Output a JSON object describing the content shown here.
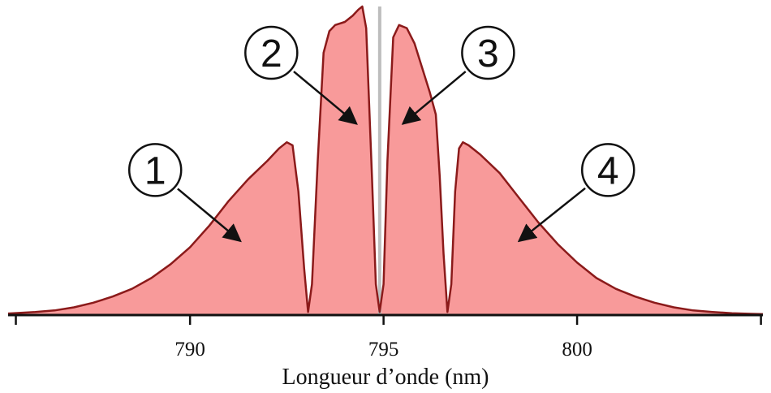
{
  "chart_data": {
    "type": "area",
    "title": "",
    "xlabel": "Longueur d’onde (nm)",
    "ylabel": "",
    "xlim": [
      785.3,
      804.8
    ],
    "ylim": [
      0,
      1.0
    ],
    "x_ticks": [
      790,
      795,
      800
    ],
    "x_tick_labels": [
      "790",
      "795",
      "800"
    ],
    "grid": false,
    "legend": "none",
    "colors": {
      "fill": "#f89a9a",
      "line": "#8b1a1a",
      "axis": "#111111",
      "center_marker": "#bdbdbd"
    },
    "center_marker_x": 794.9,
    "series": [
      {
        "x": [
          785.3,
          786.0,
          786.5,
          787.0,
          787.5,
          788.0,
          788.5,
          789.0,
          789.5,
          790.0,
          790.5,
          791.0,
          791.5,
          792.0,
          792.3,
          792.5,
          792.65,
          792.8,
          792.95,
          793.05,
          793.15,
          793.3,
          793.45,
          793.6,
          793.75,
          794.0,
          794.2,
          794.35,
          794.45,
          794.55,
          794.7,
          794.8,
          794.9,
          795.0,
          795.1,
          795.25,
          795.4,
          795.6,
          795.8,
          796.0,
          796.2,
          796.35,
          796.45,
          796.55,
          796.65,
          796.75,
          796.85,
          796.95,
          797.05,
          797.2,
          797.5,
          798.0,
          798.5,
          799.0,
          799.5,
          800.0,
          800.5,
          801.0,
          801.5,
          802.0,
          802.5,
          803.0,
          803.5,
          804.0,
          804.5,
          804.8
        ],
        "y": [
          0.005,
          0.01,
          0.015,
          0.025,
          0.04,
          0.06,
          0.085,
          0.12,
          0.165,
          0.22,
          0.29,
          0.37,
          0.44,
          0.5,
          0.54,
          0.56,
          0.55,
          0.4,
          0.15,
          0.01,
          0.1,
          0.5,
          0.85,
          0.92,
          0.94,
          0.95,
          0.97,
          0.99,
          1.0,
          0.93,
          0.45,
          0.1,
          0.01,
          0.1,
          0.5,
          0.9,
          0.94,
          0.93,
          0.88,
          0.8,
          0.72,
          0.65,
          0.45,
          0.2,
          0.01,
          0.1,
          0.4,
          0.54,
          0.56,
          0.55,
          0.52,
          0.46,
          0.38,
          0.3,
          0.23,
          0.17,
          0.12,
          0.085,
          0.06,
          0.04,
          0.025,
          0.015,
          0.01,
          0.006,
          0.004,
          0.003
        ]
      }
    ],
    "annotations": [
      {
        "label": "1",
        "label_x": 789.1,
        "label_y": 0.47,
        "arrow_to_x": 791.3,
        "arrow_to_y": 0.24
      },
      {
        "label": "2",
        "label_x": 792.1,
        "label_y": 0.85,
        "arrow_to_x": 794.3,
        "arrow_to_y": 0.62
      },
      {
        "label": "3",
        "label_x": 797.7,
        "label_y": 0.85,
        "arrow_to_x": 795.5,
        "arrow_to_y": 0.62
      },
      {
        "label": "4",
        "label_x": 800.8,
        "label_y": 0.47,
        "arrow_to_x": 798.5,
        "arrow_to_y": 0.24
      }
    ]
  }
}
